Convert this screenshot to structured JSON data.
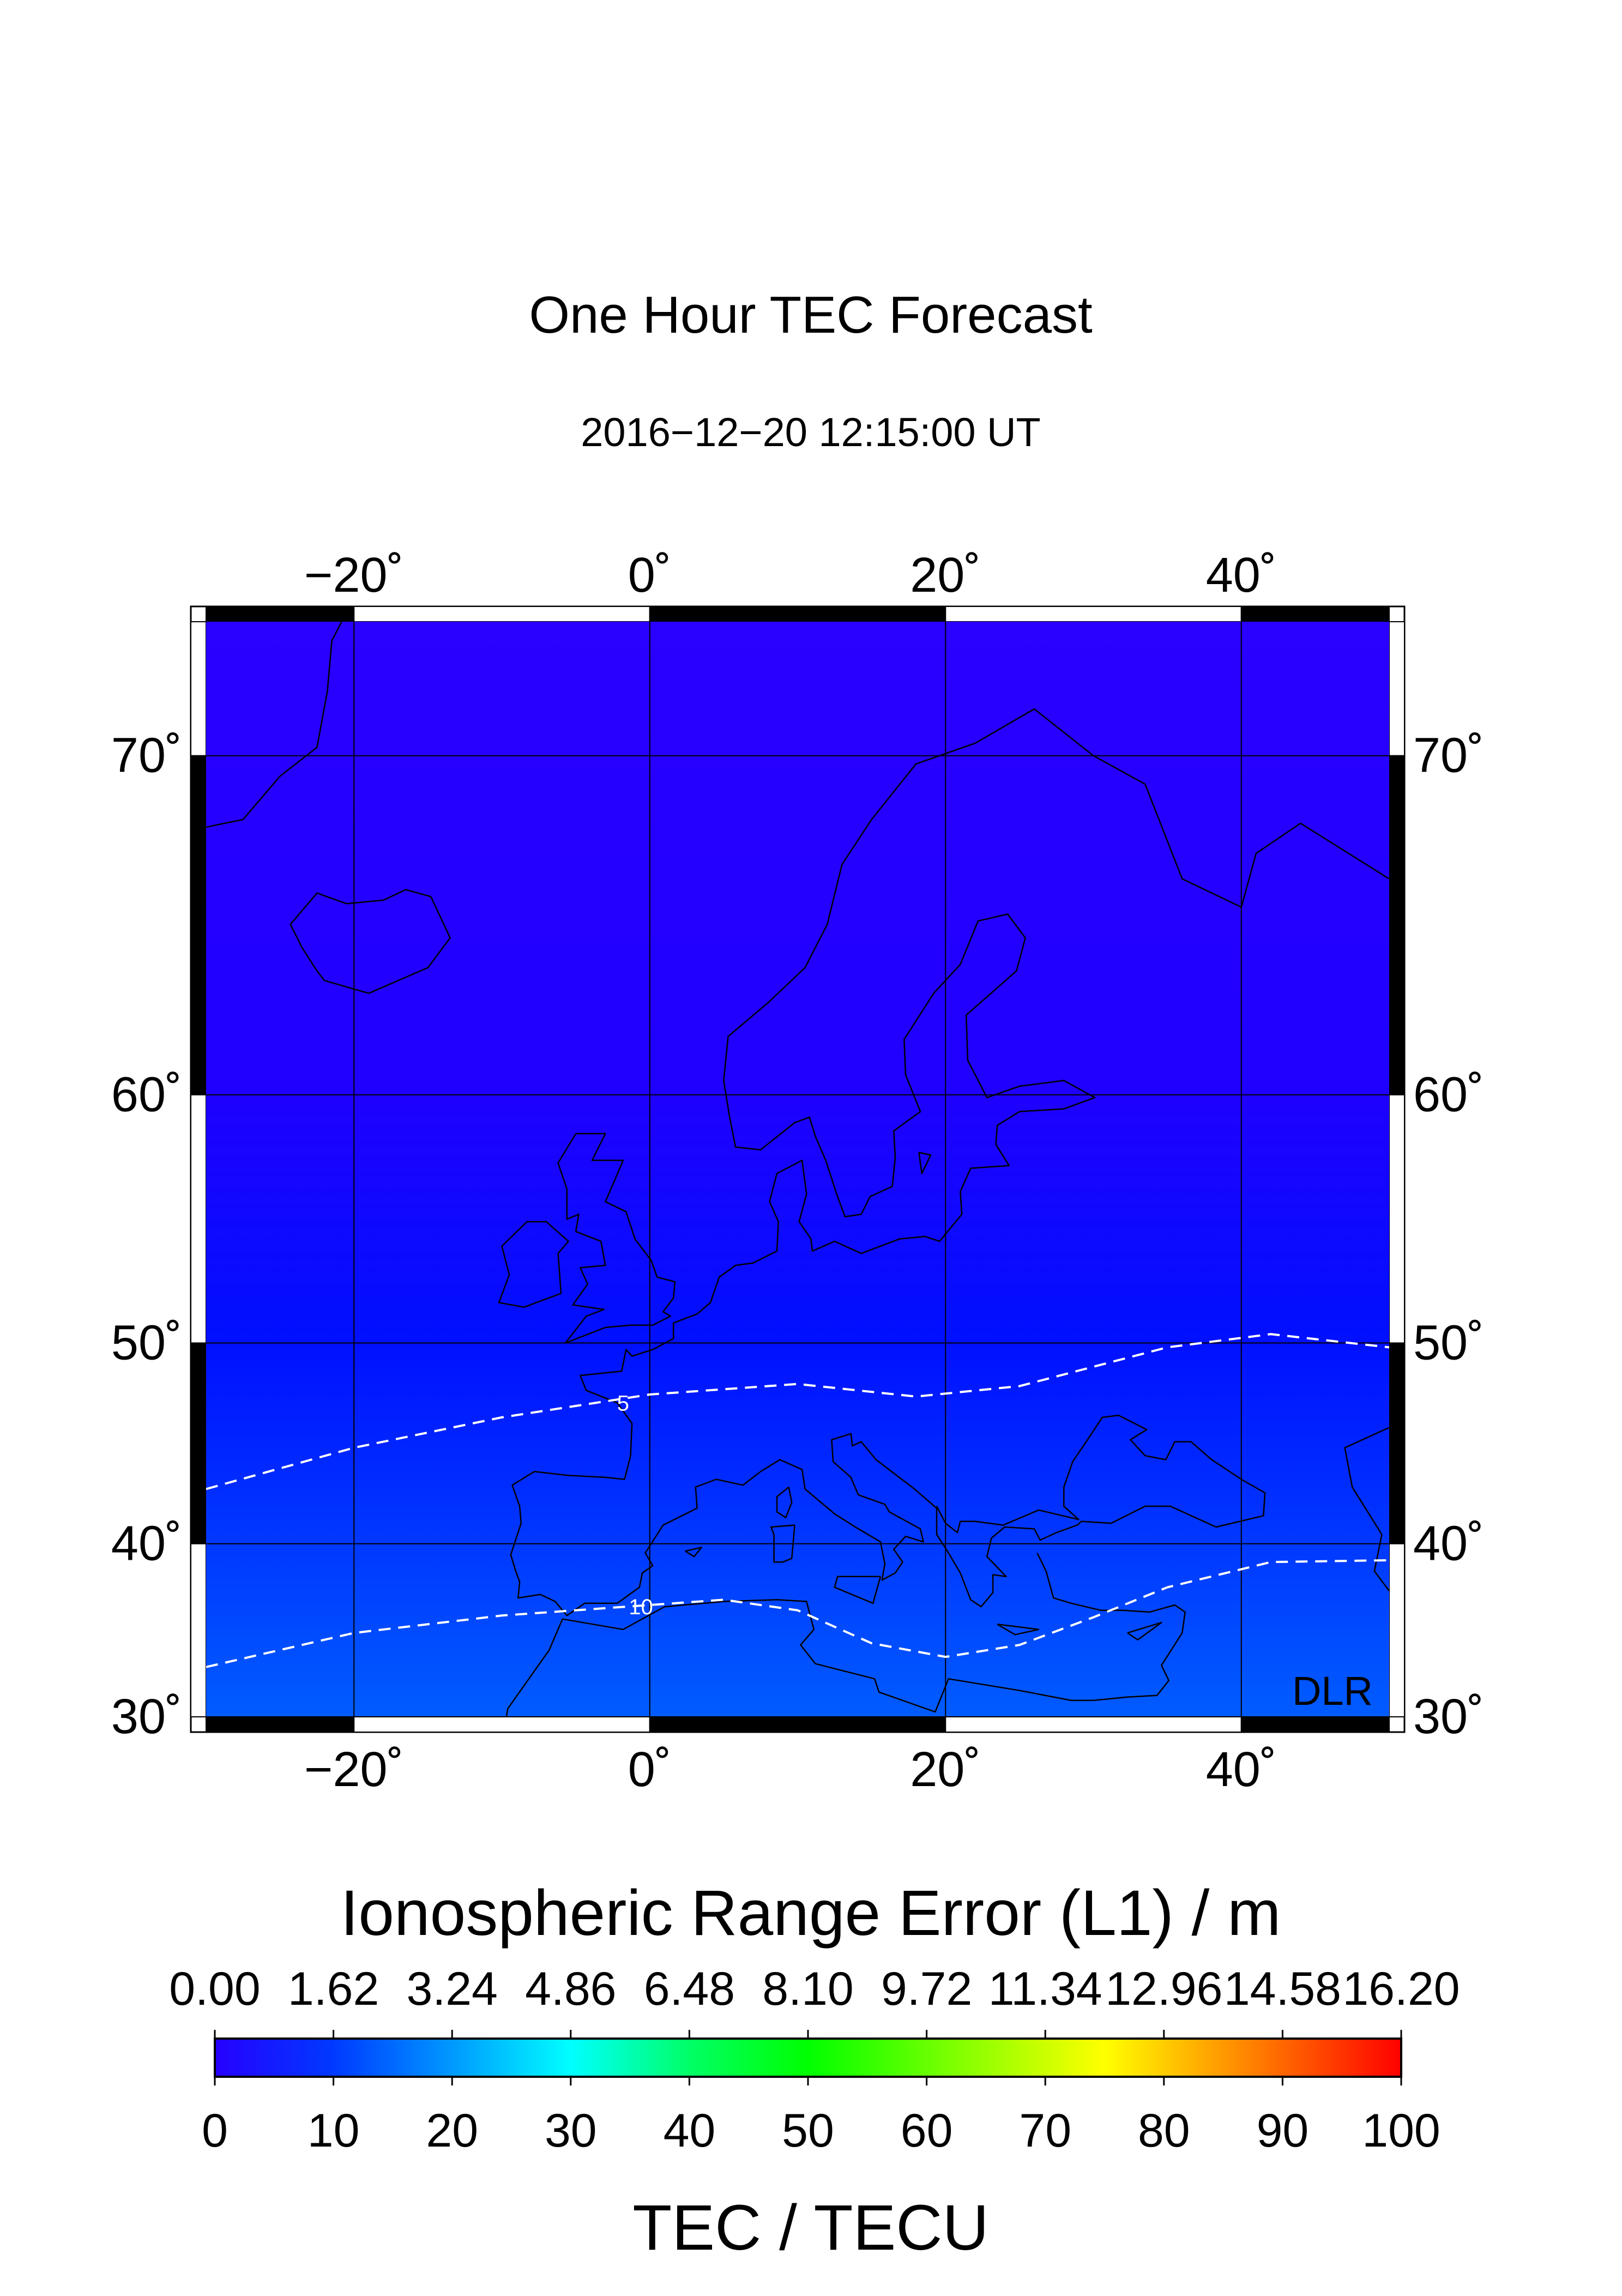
{
  "title": "One Hour TEC Forecast",
  "timestamp": "2016−12−20  12:15:00 UT",
  "watermark": "DLR",
  "map": {
    "projection": "Mercator",
    "lon_range": [
      -30,
      50
    ],
    "lat_range": [
      30,
      73
    ],
    "lon_ticks": [
      {
        "value": -20,
        "label": "−20˚"
      },
      {
        "value": 0,
        "label": "0˚"
      },
      {
        "value": 20,
        "label": "20˚"
      },
      {
        "value": 40,
        "label": "40˚"
      }
    ],
    "lat_ticks": [
      {
        "value": 70,
        "label": "70˚"
      },
      {
        "value": 60,
        "label": "60˚"
      },
      {
        "value": 50,
        "label": "50˚"
      },
      {
        "value": 40,
        "label": "40˚"
      },
      {
        "value": 30,
        "label": "30˚"
      }
    ],
    "background_gradient": [
      {
        "lat": 73,
        "color": "#2a00ff"
      },
      {
        "lat": 60,
        "color": "#1f00ff"
      },
      {
        "lat": 50,
        "color": "#0010ff"
      },
      {
        "lat": 40,
        "color": "#0038ff"
      },
      {
        "lat": 30,
        "color": "#005cff"
      }
    ],
    "contours": [
      {
        "label": "5",
        "label_at": [
          -1.8,
          47.2
        ],
        "points": [
          [
            -30,
            42.9
          ],
          [
            -20,
            45.0
          ],
          [
            -10,
            46.5
          ],
          [
            0,
            47.6
          ],
          [
            10,
            48.1
          ],
          [
            18,
            47.5
          ],
          [
            25,
            48.0
          ],
          [
            35,
            49.8
          ],
          [
            42,
            50.4
          ],
          [
            50,
            49.8
          ]
        ]
      },
      {
        "label": "10",
        "label_at": [
          -0.6,
          36.5
        ],
        "points": [
          [
            -30,
            33.0
          ],
          [
            -20,
            35.0
          ],
          [
            -10,
            36.0
          ],
          [
            0,
            36.6
          ],
          [
            5,
            36.9
          ],
          [
            10,
            36.3
          ],
          [
            15,
            34.4
          ],
          [
            20,
            33.6
          ],
          [
            25,
            34.3
          ],
          [
            30,
            35.9
          ],
          [
            35,
            37.6
          ],
          [
            42,
            39.0
          ],
          [
            50,
            39.1
          ]
        ]
      }
    ],
    "coastline_color": "#000000",
    "grid_color": "#000000"
  },
  "colorbar": {
    "title": "Ionospheric Range Error (L1) / m",
    "top_labels": [
      "0.00",
      "1.62",
      "3.24",
      "4.86",
      "6.48",
      "8.10",
      "9.72",
      "11.34",
      "12.96",
      "14.58",
      "16.20"
    ],
    "bottom_labels": [
      "0",
      "10",
      "20",
      "30",
      "40",
      "50",
      "60",
      "70",
      "80",
      "90",
      "100"
    ],
    "unit_label": "TEC / TECU",
    "range": [
      0,
      100
    ],
    "stops": [
      {
        "value": 0,
        "color": "#2600ff"
      },
      {
        "value": 10,
        "color": "#0039ff"
      },
      {
        "value": 20,
        "color": "#0099ff"
      },
      {
        "value": 30,
        "color": "#00ffff"
      },
      {
        "value": 40,
        "color": "#00ff66"
      },
      {
        "value": 50,
        "color": "#00ff00"
      },
      {
        "value": 60,
        "color": "#66ff00"
      },
      {
        "value": 70,
        "color": "#ccff00"
      },
      {
        "value": 75,
        "color": "#ffff00"
      },
      {
        "value": 85,
        "color": "#ff9900"
      },
      {
        "value": 100,
        "color": "#ff0000"
      }
    ]
  }
}
